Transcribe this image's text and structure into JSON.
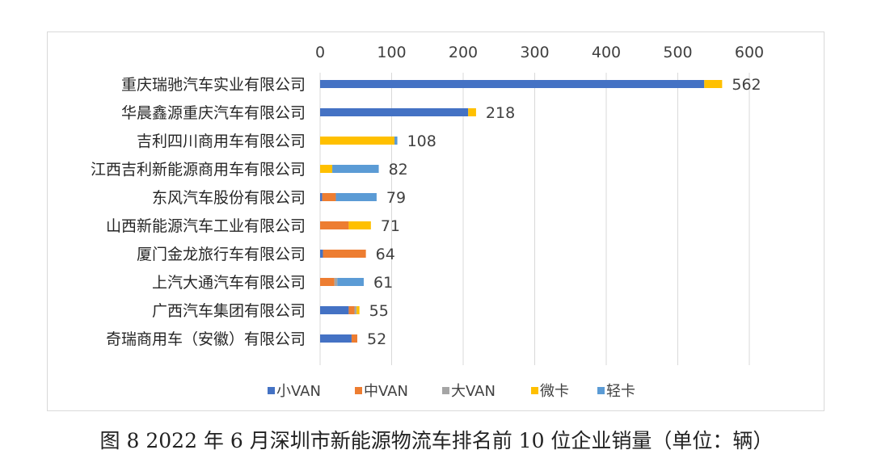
{
  "caption": "图 8  2022 年 6 月深圳市新能源物流车排名前 10 位企业销量（单位：辆）",
  "chart_data": {
    "type": "bar",
    "orientation": "horizontal",
    "stacked": true,
    "categories": [
      "重庆瑞驰汽车实业有限公司",
      "华晨鑫源重庆汽车有限公司",
      "吉利四川商用车有限公司",
      "江西吉利新能源商用车有限公司",
      "东风汽车股份有限公司",
      "山西新能源汽车工业有限公司",
      "厦门金龙旅行车有限公司",
      "上汽大通汽车有限公司",
      "广西汽车集团有限公司",
      "奇瑞商用车（安徽）有限公司"
    ],
    "series": [
      {
        "name": "小VAN",
        "color": "#4472c4",
        "values": [
          537,
          207,
          0,
          0,
          3,
          0,
          4,
          0,
          40,
          44
        ]
      },
      {
        "name": "中VAN",
        "color": "#ed7d31",
        "values": [
          0,
          0,
          0,
          0,
          19,
          40,
          60,
          20,
          8,
          8
        ]
      },
      {
        "name": "大VAN",
        "color": "#a5a5a5",
        "values": [
          0,
          0,
          0,
          0,
          0,
          0,
          0,
          4,
          3,
          0
        ]
      },
      {
        "name": "微卡",
        "color": "#ffc000",
        "values": [
          25,
          11,
          104,
          17,
          0,
          31,
          0,
          0,
          4,
          0
        ]
      },
      {
        "name": "轻卡",
        "color": "#5b9bd5",
        "values": [
          0,
          0,
          4,
          65,
          57,
          0,
          0,
          37,
          0,
          0
        ]
      }
    ],
    "totals": [
      562,
      218,
      108,
      82,
      79,
      71,
      64,
      61,
      55,
      52
    ],
    "xlim": [
      0,
      600
    ],
    "xticks": [
      0,
      100,
      200,
      300,
      400,
      500,
      600
    ],
    "x_axis_position": "top",
    "grid": true,
    "legend_position": "bottom"
  }
}
